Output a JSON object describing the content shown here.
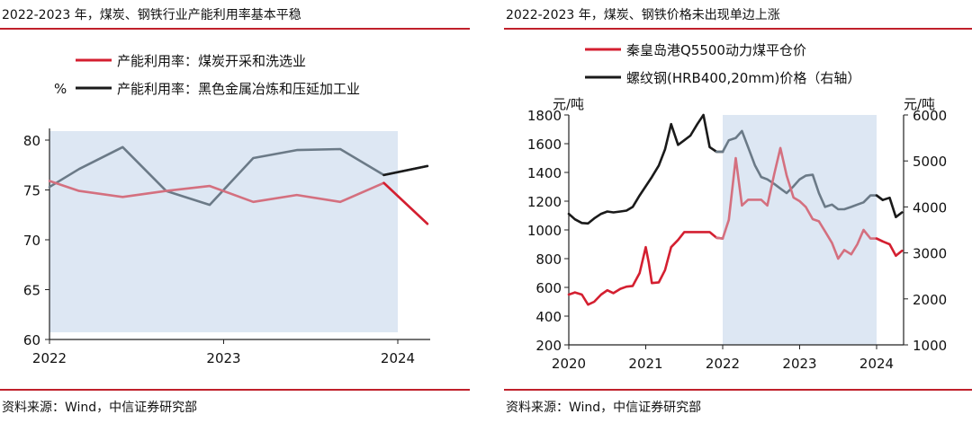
{
  "left": {
    "title": "2022-2023 年，煤炭、钢铁行业产能利用率基本平稳",
    "source": "资料来源：Wind，中信证券研究部",
    "unit": "%"
  },
  "right": {
    "title": "2022-2023 年，煤炭、钢铁价格未出现单边上涨",
    "source": "资料来源：Wind，中信证券研究部",
    "unit_left": "元/吨",
    "unit_right": "元/吨"
  },
  "colors": {
    "red": "#d41f30",
    "black": "#1a1a1a",
    "highlight": "#dde7f3",
    "rule": "#c0202b",
    "overlap_red": "#d4707f",
    "overlap_black": "#6b7a87"
  },
  "chart_data": [
    {
      "type": "line",
      "xlabel": "",
      "ylabel": "%",
      "x_ticks": [
        "2022",
        "2023",
        "2024"
      ],
      "x_range": [
        2022.0,
        2024.2
      ],
      "ylim": [
        60,
        82
      ],
      "y_ticks": [
        60,
        65,
        70,
        75,
        80
      ],
      "grid": false,
      "legend": "top-left",
      "highlight_range": [
        2022.0,
        2024.0
      ],
      "series": [
        {
          "name": "产能利用率：煤炭开采和洗选业",
          "color": "#d41f30",
          "x": [
            2022.0,
            2022.17,
            2022.42,
            2022.67,
            2022.92,
            2023.17,
            2023.42,
            2023.67,
            2023.92,
            2024.17
          ],
          "values": [
            75.9,
            74.9,
            74.3,
            74.9,
            75.4,
            73.8,
            74.5,
            73.8,
            75.7,
            71.6
          ]
        },
        {
          "name": "产能利用率：黑色金属冶炼和压延加工业",
          "color": "#1a1a1a",
          "x": [
            2022.0,
            2022.17,
            2022.42,
            2022.67,
            2022.92,
            2023.17,
            2023.42,
            2023.67,
            2023.92,
            2024.17
          ],
          "values": [
            75.3,
            77.1,
            79.3,
            74.9,
            73.5,
            78.2,
            79.0,
            79.1,
            76.5,
            77.4
          ]
        }
      ]
    },
    {
      "type": "line",
      "xlabel": "",
      "ylabel": "元/吨",
      "ylabel_right": "元/吨",
      "x_ticks": [
        "2020",
        "2021",
        "2022",
        "2023",
        "2024"
      ],
      "x_range": [
        2020.0,
        2024.33
      ],
      "ylim": [
        200,
        1800
      ],
      "y_ticks": [
        200,
        400,
        600,
        800,
        1000,
        1200,
        1400,
        1600,
        1800
      ],
      "ylim_right": [
        1000,
        6000
      ],
      "y_ticks_right": [
        1000,
        2000,
        3000,
        4000,
        5000,
        6000
      ],
      "grid": false,
      "legend": "top",
      "highlight_range": [
        2022.0,
        2024.0
      ],
      "series": [
        {
          "name": "秦皇岛港Q5500动力煤平仓价",
          "axis": "left",
          "color": "#d41f30",
          "x": [
            2020.0,
            2020.08,
            2020.17,
            2020.25,
            2020.33,
            2020.42,
            2020.5,
            2020.58,
            2020.67,
            2020.75,
            2020.83,
            2020.92,
            2021.0,
            2021.04,
            2021.08,
            2021.17,
            2021.25,
            2021.33,
            2021.42,
            2021.5,
            2021.58,
            2021.67,
            2021.75,
            2021.83,
            2021.92,
            2022.0,
            2022.08,
            2022.17,
            2022.25,
            2022.33,
            2022.42,
            2022.5,
            2022.58,
            2022.67,
            2022.75,
            2022.83,
            2022.92,
            2023.0,
            2023.08,
            2023.17,
            2023.25,
            2023.33,
            2023.42,
            2023.5,
            2023.58,
            2023.67,
            2023.75,
            2023.83,
            2023.92,
            2024.0,
            2024.08,
            2024.17,
            2024.25,
            2024.33
          ],
          "values": [
            550,
            565,
            550,
            480,
            500,
            550,
            580,
            560,
            590,
            605,
            610,
            700,
            880,
            770,
            630,
            635,
            720,
            880,
            930,
            985,
            985,
            985,
            985,
            985,
            945,
            940,
            1070,
            1500,
            1170,
            1210,
            1210,
            1210,
            1170,
            1390,
            1570,
            1380,
            1225,
            1200,
            1160,
            1075,
            1060,
            990,
            910,
            800,
            860,
            830,
            900,
            1000,
            940,
            940,
            920,
            900,
            820,
            855
          ]
        },
        {
          "name": "螺纹钢(HRB400,20mm)价格（右轴）",
          "axis": "right",
          "color": "#1a1a1a",
          "x": [
            2020.0,
            2020.08,
            2020.17,
            2020.25,
            2020.33,
            2020.42,
            2020.5,
            2020.58,
            2020.67,
            2020.75,
            2020.83,
            2020.92,
            2021.0,
            2021.08,
            2021.17,
            2021.25,
            2021.33,
            2021.42,
            2021.5,
            2021.58,
            2021.67,
            2021.75,
            2021.83,
            2021.92,
            2022.0,
            2022.08,
            2022.17,
            2022.25,
            2022.33,
            2022.42,
            2022.5,
            2022.58,
            2022.67,
            2022.75,
            2022.83,
            2022.92,
            2023.0,
            2023.08,
            2023.17,
            2023.25,
            2023.33,
            2023.42,
            2023.5,
            2023.58,
            2023.67,
            2023.75,
            2023.83,
            2023.92,
            2024.0,
            2024.08,
            2024.17,
            2024.25,
            2024.33
          ],
          "values": [
            3850,
            3730,
            3650,
            3640,
            3750,
            3850,
            3900,
            3880,
            3900,
            3920,
            4000,
            4250,
            4450,
            4650,
            4900,
            5250,
            5800,
            5350,
            5450,
            5550,
            5800,
            6000,
            5300,
            5200,
            5200,
            5450,
            5500,
            5650,
            5300,
            4900,
            4650,
            4600,
            4500,
            4400,
            4300,
            4450,
            4600,
            4680,
            4700,
            4300,
            4000,
            4050,
            3950,
            3950,
            4000,
            4050,
            4100,
            4250,
            4250,
            4150,
            4200,
            3780,
            3880
          ]
        }
      ]
    }
  ]
}
